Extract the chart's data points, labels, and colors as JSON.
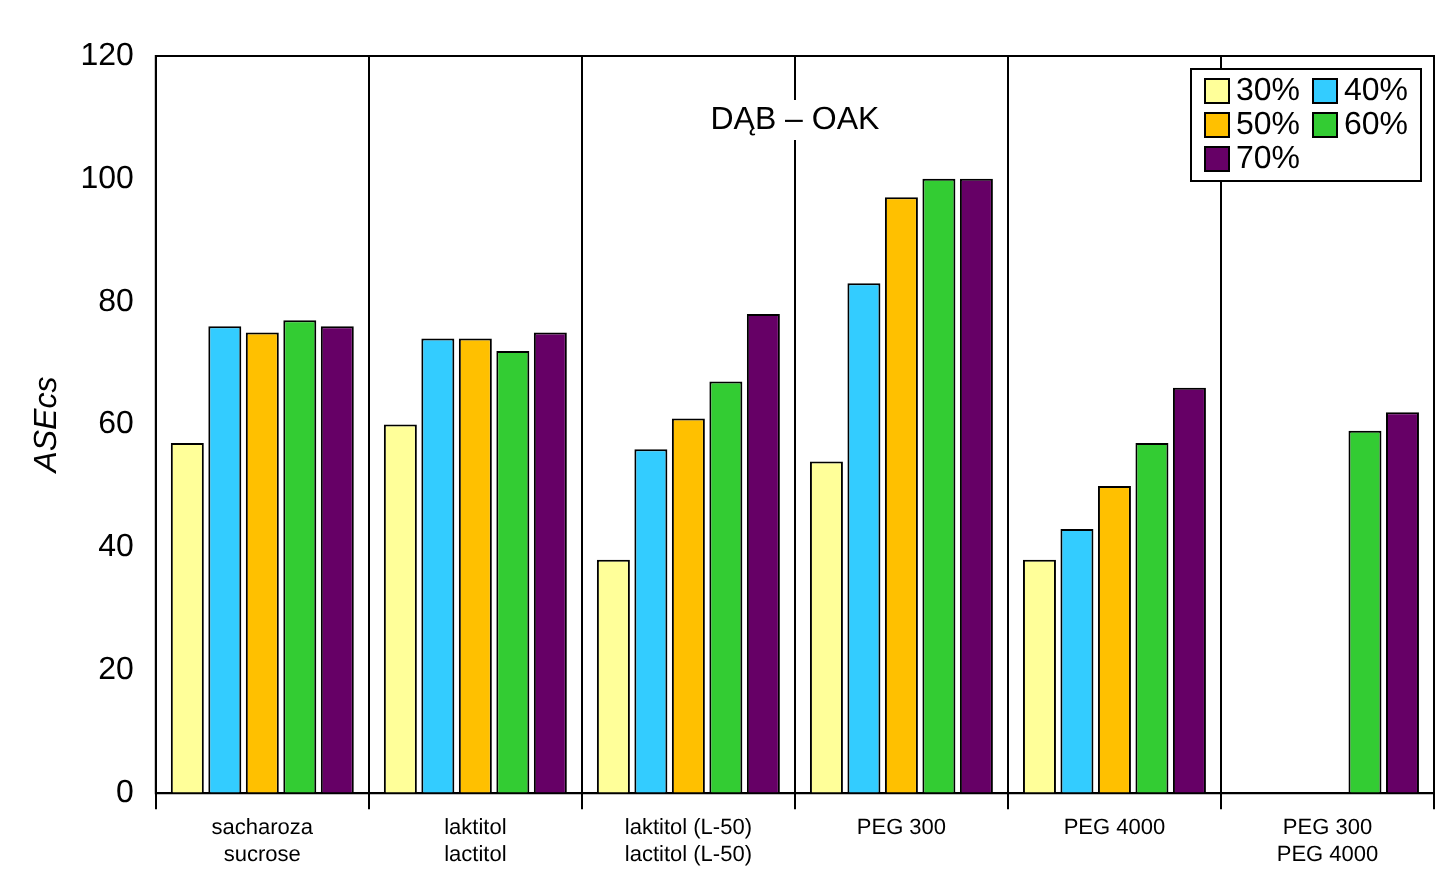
{
  "chart_data": {
    "type": "bar",
    "title": "DĄB – OAK",
    "ylabel": "ASEcs",
    "categories": [
      "sacharoza\nsucrose",
      "laktitol\nlactitol",
      "laktitol (L-50)\nlactitol (L-50)",
      "PEG 300",
      "PEG 4000",
      "PEG 300\nPEG 4000"
    ],
    "series": [
      {
        "name": "30%",
        "color": "#ffff99",
        "values": [
          57,
          60,
          38,
          54,
          38,
          null
        ]
      },
      {
        "name": "40%",
        "color": "#33ccff",
        "values": [
          76,
          74,
          56,
          83,
          43,
          null
        ]
      },
      {
        "name": "50%",
        "color": "#ffc000",
        "values": [
          75,
          74,
          61,
          97,
          50,
          null
        ]
      },
      {
        "name": "60%",
        "color": "#33cc33",
        "values": [
          77,
          72,
          67,
          100,
          57,
          59
        ]
      },
      {
        "name": "70%",
        "color": "#660066",
        "values": [
          76,
          75,
          78,
          100,
          66,
          62
        ]
      }
    ],
    "ylim": [
      0,
      120
    ],
    "yticks": [
      0,
      20,
      40,
      60,
      80,
      100,
      120
    ],
    "grid": "x",
    "legend": "top right"
  }
}
